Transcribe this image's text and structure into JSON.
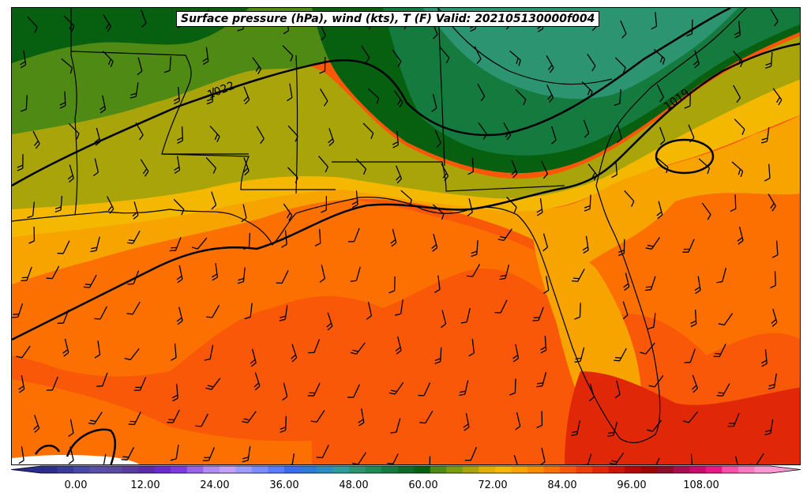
{
  "title": "Surface pressure (hPa), wind (kts), T (F) Valid: 202105130000f004",
  "isobar_labels": [
    "1022",
    "1019"
  ],
  "colorbar": {
    "ticks": [
      "0.00",
      "12.00",
      "24.00",
      "36.00",
      "48.00",
      "60.00",
      "72.00",
      "84.00",
      "96.00",
      "108.00"
    ],
    "min": -6,
    "max": 120,
    "step": 3,
    "colors": [
      "#2c2c8c",
      "#3a3a9a",
      "#4848a8",
      "#5a4fa8",
      "#5c4aa0",
      "#5a3c9e",
      "#5a2aa8",
      "#6a2acc",
      "#7e3ae0",
      "#9a64e8",
      "#b08cf2",
      "#c4a0f8",
      "#9c9cff",
      "#7a8cff",
      "#5a7cff",
      "#3a6cf0",
      "#2c7ad8",
      "#2c8cc0",
      "#2c9c9c",
      "#2c9470",
      "#1e8a54",
      "#157a3e",
      "#0e6a26",
      "#066010",
      "#4e8a14",
      "#7c9c0e",
      "#a8a40a",
      "#e0b004",
      "#f4b800",
      "#f8a400",
      "#fb8c00",
      "#fb7000",
      "#f85808",
      "#ec3e08",
      "#e02808",
      "#cc1408",
      "#b40808",
      "#9c0404",
      "#8c0c28",
      "#a80c4c",
      "#c80c6c",
      "#e81888",
      "#f850a8",
      "#fc78c0",
      "#fc98d4"
    ]
  },
  "legend_colors": {
    "contour": "#000000",
    "border": "#000000"
  }
}
